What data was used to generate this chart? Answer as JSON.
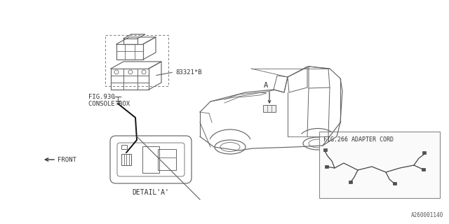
{
  "bg_color": "#ffffff",
  "line_color": "#606060",
  "text_color": "#333333",
  "part_number": "83321*B",
  "fig_console_1": "FIG.930",
  "fig_console_2": "CONSOLE BOX",
  "fig_adapter": "FIG.266 ADAPTER CORD",
  "detail_label": "DETAIL'A'",
  "front_label": "FRONT",
  "label_a": "A",
  "part_code": "A260001140",
  "title_fontsize": 7,
  "small_fontsize": 6.5,
  "mono_font": "monospace"
}
